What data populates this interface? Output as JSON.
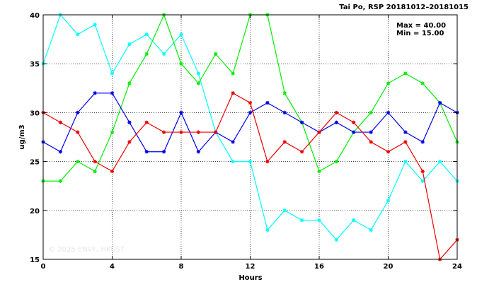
{
  "chart_data": {
    "type": "line",
    "title": "Tai Po, RSP 20181012–20181015",
    "xlabel": "Hours",
    "ylabel": "ug/m3",
    "xlim": [
      0,
      24
    ],
    "ylim": [
      15,
      40
    ],
    "xticks": [
      "0",
      "4",
      "8",
      "12",
      "16",
      "20",
      "24"
    ],
    "yticks": [
      "15",
      "20",
      "25",
      "30",
      "35",
      "40"
    ],
    "grid": true,
    "stats": {
      "max": "Max = 40.00",
      "min": "Min = 15.00"
    },
    "watermark": "© 2025  ENVF, HKUST",
    "x": [
      0,
      1,
      2,
      3,
      4,
      5,
      6,
      7,
      8,
      9,
      10,
      11,
      12,
      13,
      14,
      15,
      16,
      17,
      18,
      19,
      20,
      21,
      22,
      23,
      24
    ],
    "series": [
      {
        "color": "#00ffff",
        "values": [
          35,
          40,
          38,
          39,
          34,
          37,
          38,
          36,
          38,
          34,
          28,
          25,
          25,
          18,
          20,
          19,
          19,
          17,
          19,
          18,
          21,
          25,
          23,
          25,
          23
        ]
      },
      {
        "color": "#00ee00",
        "values": [
          23,
          23,
          25,
          24,
          28,
          33,
          36,
          40,
          35,
          33,
          36,
          34,
          40,
          40,
          32,
          29,
          24,
          25,
          28,
          30,
          33,
          34,
          33,
          31,
          27
        ]
      },
      {
        "color": "#0000ee",
        "values": [
          27,
          26,
          30,
          32,
          32,
          29,
          26,
          26,
          30,
          26,
          28,
          27,
          30,
          31,
          30,
          29,
          28,
          29,
          28,
          28,
          30,
          28,
          27,
          31,
          30
        ]
      },
      {
        "color": "#ee0000",
        "values": [
          30,
          29,
          28,
          25,
          24,
          27,
          29,
          28,
          28,
          28,
          28,
          32,
          31,
          25,
          27,
          26,
          28,
          30,
          29,
          27,
          26,
          27,
          24,
          15,
          17
        ]
      }
    ]
  }
}
